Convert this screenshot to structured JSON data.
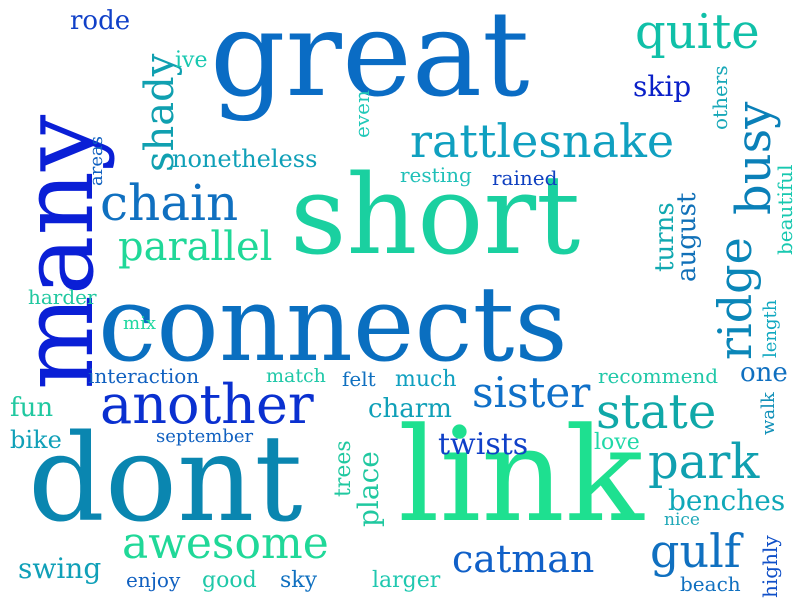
{
  "words": [
    {
      "text": "many",
      "color": "#0a1fd6",
      "orientation": "vertical"
    },
    {
      "text": "great",
      "color": "#0a6cc4",
      "orientation": "horizontal"
    },
    {
      "text": "short",
      "color": "#1ad0a0",
      "orientation": "horizontal"
    },
    {
      "text": "connects",
      "color": "#0a6fc0",
      "orientation": "horizontal"
    },
    {
      "text": "dont",
      "color": "#0a86b0",
      "orientation": "horizontal"
    },
    {
      "text": "link",
      "color": "#1ee090",
      "orientation": "horizontal"
    },
    {
      "text": "rode",
      "color": "#1040c8",
      "orientation": "horizontal"
    },
    {
      "text": "shady",
      "color": "#10a0b0",
      "orientation": "vertical"
    },
    {
      "text": "ive",
      "color": "#18c8b0",
      "orientation": "horizontal"
    },
    {
      "text": "quite",
      "color": "#10c0a8",
      "orientation": "horizontal"
    },
    {
      "text": "skip",
      "color": "#0a20c8",
      "orientation": "horizontal"
    },
    {
      "text": "others",
      "color": "#18a8b8",
      "orientation": "vertical"
    },
    {
      "text": "busy",
      "color": "#0a80b8",
      "orientation": "vertical"
    },
    {
      "text": "even",
      "color": "#20c8b8",
      "orientation": "vertical"
    },
    {
      "text": "areas",
      "color": "#1060c0",
      "orientation": "vertical"
    },
    {
      "text": "nonetheless",
      "color": "#10a0b8",
      "orientation": "horizontal"
    },
    {
      "text": "rattlesnake",
      "color": "#10a0c0",
      "orientation": "horizontal"
    },
    {
      "text": "resting",
      "color": "#20c0b8",
      "orientation": "horizontal"
    },
    {
      "text": "rained",
      "color": "#1040c0",
      "orientation": "horizontal"
    },
    {
      "text": "chain",
      "color": "#1070c0",
      "orientation": "horizontal"
    },
    {
      "text": "august",
      "color": "#1070b8",
      "orientation": "vertical"
    },
    {
      "text": "turns",
      "color": "#10a8b0",
      "orientation": "vertical"
    },
    {
      "text": "ridge",
      "color": "#0a86b8",
      "orientation": "vertical"
    },
    {
      "text": "beautiful",
      "color": "#18c8b0",
      "orientation": "vertical"
    },
    {
      "text": "parallel",
      "color": "#20d898",
      "orientation": "horizontal"
    },
    {
      "text": "length",
      "color": "#10a8c0",
      "orientation": "vertical"
    },
    {
      "text": "harder",
      "color": "#20c8a0",
      "orientation": "horizontal"
    },
    {
      "text": "mix",
      "color": "#20d8a0",
      "orientation": "horizontal"
    },
    {
      "text": "interaction",
      "color": "#1060c0",
      "orientation": "horizontal"
    },
    {
      "text": "match",
      "color": "#20c8a8",
      "orientation": "horizontal"
    },
    {
      "text": "felt",
      "color": "#1070c0",
      "orientation": "horizontal"
    },
    {
      "text": "much",
      "color": "#10a0c0",
      "orientation": "horizontal"
    },
    {
      "text": "recommend",
      "color": "#20c8a8",
      "orientation": "horizontal"
    },
    {
      "text": "one",
      "color": "#1070c0",
      "orientation": "horizontal"
    },
    {
      "text": "fun",
      "color": "#20c8a0",
      "orientation": "horizontal"
    },
    {
      "text": "another",
      "color": "#0a30d0",
      "orientation": "horizontal"
    },
    {
      "text": "sister",
      "color": "#1070c8",
      "orientation": "horizontal"
    },
    {
      "text": "state",
      "color": "#10a8a8",
      "orientation": "horizontal"
    },
    {
      "text": "charm",
      "color": "#10a0b8",
      "orientation": "horizontal"
    },
    {
      "text": "walk",
      "color": "#1090b8",
      "orientation": "vertical"
    },
    {
      "text": "bike",
      "color": "#10a0b8",
      "orientation": "horizontal"
    },
    {
      "text": "september",
      "color": "#1060c0",
      "orientation": "horizontal"
    },
    {
      "text": "trees",
      "color": "#20c8a0",
      "orientation": "vertical"
    },
    {
      "text": "twists",
      "color": "#1040c8",
      "orientation": "horizontal"
    },
    {
      "text": "love",
      "color": "#20d8a8",
      "orientation": "horizontal"
    },
    {
      "text": "park",
      "color": "#10a0b0",
      "orientation": "horizontal"
    },
    {
      "text": "place",
      "color": "#20c8a0",
      "orientation": "vertical"
    },
    {
      "text": "benches",
      "color": "#10a8b8",
      "orientation": "horizontal"
    },
    {
      "text": "nice",
      "color": "#20a8b8",
      "orientation": "horizontal"
    },
    {
      "text": "awesome",
      "color": "#20d898",
      "orientation": "horizontal"
    },
    {
      "text": "catman",
      "color": "#1060c8",
      "orientation": "horizontal"
    },
    {
      "text": "gulf",
      "color": "#1070c0",
      "orientation": "horizontal"
    },
    {
      "text": "swing",
      "color": "#10a0b8",
      "orientation": "horizontal"
    },
    {
      "text": "enjoy",
      "color": "#1060c0",
      "orientation": "horizontal"
    },
    {
      "text": "good",
      "color": "#20c8a8",
      "orientation": "horizontal"
    },
    {
      "text": "sky",
      "color": "#1070c0",
      "orientation": "horizontal"
    },
    {
      "text": "larger",
      "color": "#20c8b0",
      "orientation": "horizontal"
    },
    {
      "text": "beach",
      "color": "#1070c0",
      "orientation": "horizontal"
    },
    {
      "text": "highly",
      "color": "#1050c8",
      "orientation": "vertical"
    }
  ]
}
